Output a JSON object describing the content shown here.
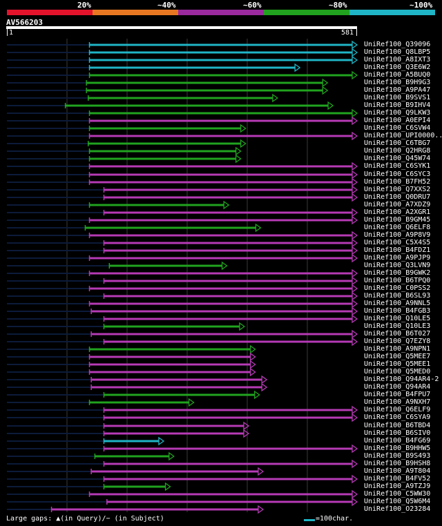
{
  "header": {
    "percent_labels": [
      "20%",
      "~40%",
      "~60%",
      "~80%",
      "~100%"
    ],
    "identity_colors": [
      "#e3132c",
      "#e87722",
      "#9a2a9e",
      "#21a31f",
      "#1fb5c6"
    ],
    "query_id": "AV566203",
    "ruler_start": "1",
    "ruler_end": "581"
  },
  "colors": {
    "cyan": "#1fb5c6",
    "green": "#21a31f",
    "magenta": "#b63ab5",
    "dark": "#0c1b3a"
  },
  "hits": [
    {
      "id": "UniRef100_Q39096",
      "start": 138,
      "end": 581,
      "color": "cyan"
    },
    {
      "id": "UniRef100_Q8LBP5",
      "start": 138,
      "end": 581,
      "color": "cyan"
    },
    {
      "id": "UniRef100_A8IXT3",
      "start": 138,
      "end": 581,
      "color": "cyan"
    },
    {
      "id": "UniRef100_Q3E6W2",
      "start": 138,
      "end": 486,
      "color": "cyan"
    },
    {
      "id": "UniRef100_A5BUQ0",
      "start": 138,
      "end": 581,
      "color": "green"
    },
    {
      "id": "UniRef100_B9H9G3",
      "start": 133,
      "end": 532,
      "color": "green"
    },
    {
      "id": "UniRef100_A9PA47",
      "start": 133,
      "end": 532,
      "color": "green"
    },
    {
      "id": "UniRef100_B9SVS1",
      "start": 136,
      "end": 449,
      "color": "green"
    },
    {
      "id": "UniRef100_B9IHV4",
      "start": 98,
      "end": 541,
      "color": "green"
    },
    {
      "id": "UniRef100_Q9LKW3",
      "start": 138,
      "end": 581,
      "color": "green"
    },
    {
      "id": "UniRef100_A0EPI4",
      "start": 138,
      "end": 581,
      "color": "magenta"
    },
    {
      "id": "UniRef100_C6SVW4",
      "start": 138,
      "end": 396,
      "color": "green"
    },
    {
      "id": "UniRef100_UPI0000..",
      "start": 138,
      "end": 581,
      "color": "magenta"
    },
    {
      "id": "UniRef100_C6TBG7",
      "start": 136,
      "end": 396,
      "color": "green"
    },
    {
      "id": "UniRef100_Q2HRG8",
      "start": 138,
      "end": 388,
      "color": "green"
    },
    {
      "id": "UniRef100_Q45W74",
      "start": 138,
      "end": 388,
      "color": "green"
    },
    {
      "id": "UniRef100_C6SYK1",
      "start": 138,
      "end": 581,
      "color": "magenta"
    },
    {
      "id": "UniRef100_C6SYC3",
      "start": 138,
      "end": 581,
      "color": "magenta"
    },
    {
      "id": "UniRef100_B7FH52",
      "start": 138,
      "end": 581,
      "color": "magenta"
    },
    {
      "id": "UniRef100_Q7XXS2",
      "start": 162,
      "end": 581,
      "color": "magenta"
    },
    {
      "id": "UniRef100_Q0DRU7",
      "start": 162,
      "end": 581,
      "color": "magenta"
    },
    {
      "id": "UniRef100_A7XDZ9",
      "start": 138,
      "end": 368,
      "color": "green"
    },
    {
      "id": "UniRef100_A2XGR1",
      "start": 162,
      "end": 581,
      "color": "magenta"
    },
    {
      "id": "UniRef100_B9GM45",
      "start": 138,
      "end": 581,
      "color": "magenta"
    },
    {
      "id": "UniRef100_Q6ELF8",
      "start": 131,
      "end": 421,
      "color": "green"
    },
    {
      "id": "UniRef100_A9P8V9",
      "start": 138,
      "end": 581,
      "color": "magenta"
    },
    {
      "id": "UniRef100_C5X4S5",
      "start": 162,
      "end": 581,
      "color": "magenta"
    },
    {
      "id": "UniRef100_B4FDZ1",
      "start": 162,
      "end": 581,
      "color": "magenta"
    },
    {
      "id": "UniRef100_A9PJP9",
      "start": 138,
      "end": 581,
      "color": "magenta"
    },
    {
      "id": "UniRef100_Q3LVN9",
      "start": 171,
      "end": 365,
      "color": "green"
    },
    {
      "id": "UniRef100_B9GWK2",
      "start": 138,
      "end": 581,
      "color": "magenta"
    },
    {
      "id": "UniRef100_B6TPQ0",
      "start": 162,
      "end": 581,
      "color": "magenta"
    },
    {
      "id": "UniRef100_C0PSS2",
      "start": 138,
      "end": 581,
      "color": "magenta"
    },
    {
      "id": "UniRef100_B6SL93",
      "start": 162,
      "end": 581,
      "color": "magenta"
    },
    {
      "id": "UniRef100_A9NNL5",
      "start": 138,
      "end": 581,
      "color": "magenta"
    },
    {
      "id": "UniRef100_B4FGB3",
      "start": 141,
      "end": 581,
      "color": "magenta"
    },
    {
      "id": "UniRef100_Q10LE5",
      "start": 162,
      "end": 581,
      "color": "magenta"
    },
    {
      "id": "UniRef100_Q10LE3",
      "start": 162,
      "end": 394,
      "color": "green"
    },
    {
      "id": "UniRef100_B6T027",
      "start": 141,
      "end": 581,
      "color": "magenta"
    },
    {
      "id": "UniRef100_Q7EZY8",
      "start": 162,
      "end": 581,
      "color": "magenta"
    },
    {
      "id": "UniRef100_A9NPN1",
      "start": 138,
      "end": 412,
      "color": "green"
    },
    {
      "id": "UniRef100_Q5MEE7",
      "start": 138,
      "end": 412,
      "color": "magenta"
    },
    {
      "id": "UniRef100_Q5MEE1",
      "start": 138,
      "end": 412,
      "color": "magenta"
    },
    {
      "id": "UniRef100_Q5MED0",
      "start": 138,
      "end": 412,
      "color": "magenta"
    },
    {
      "id": "UniRef100_Q94AR4-2",
      "start": 141,
      "end": 431,
      "color": "magenta"
    },
    {
      "id": "UniRef100_Q94AR4",
      "start": 141,
      "end": 431,
      "color": "magenta"
    },
    {
      "id": "UniRef100_B4FPU7",
      "start": 162,
      "end": 419,
      "color": "green"
    },
    {
      "id": "UniRef100_A9NXH7",
      "start": 138,
      "end": 310,
      "color": "green"
    },
    {
      "id": "UniRef100_Q6ELF9",
      "start": 162,
      "end": 581,
      "color": "magenta"
    },
    {
      "id": "UniRef100_C6SYA9",
      "start": 162,
      "end": 581,
      "color": "magenta"
    },
    {
      "id": "UniRef100_B6TBD4",
      "start": 162,
      "end": 401,
      "color": "magenta"
    },
    {
      "id": "UniRef100_B6SIV0",
      "start": 162,
      "end": 401,
      "color": "magenta"
    },
    {
      "id": "UniRef100_B4FG69",
      "start": 162,
      "end": 260,
      "color": "cyan"
    },
    {
      "id": "UniRef100_B9HHW5",
      "start": 162,
      "end": 581,
      "color": "magenta"
    },
    {
      "id": "UniRef100_B9S493",
      "start": 147,
      "end": 277,
      "color": "green"
    },
    {
      "id": "UniRef100_B9HSH8",
      "start": 162,
      "end": 581,
      "color": "magenta"
    },
    {
      "id": "UniRef100_A9T804",
      "start": 141,
      "end": 425,
      "color": "magenta"
    },
    {
      "id": "UniRef100_B4FV52",
      "start": 162,
      "end": 581,
      "color": "magenta"
    },
    {
      "id": "UniRef100_A9TZJ9",
      "start": 162,
      "end": 271,
      "color": "green"
    },
    {
      "id": "UniRef100_C5WW30",
      "start": 138,
      "end": 581,
      "color": "magenta"
    },
    {
      "id": "UniRef100_Q5W6M4",
      "start": 167,
      "end": 581,
      "color": "magenta"
    },
    {
      "id": "UniRef100_O23284",
      "start": 75,
      "end": 425,
      "color": "magenta"
    }
  ],
  "legend": {
    "gaps_text": "Large gaps: ▲(in Query)/− (in Subject)",
    "scale_text": "=100char."
  }
}
